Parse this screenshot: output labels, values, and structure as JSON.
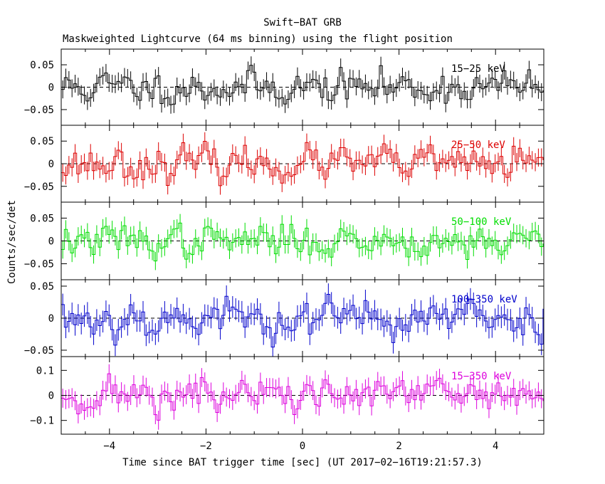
{
  "figure": {
    "title": "Swift−BAT GRB",
    "subtitle": "Maskweighted Lightcurve (64 ms binning) using the flight position",
    "ylabel": "Counts/sec/det",
    "xlabel": "Time since BAT trigger time [sec] (UT 2017−02−16T19:21:57.3)"
  },
  "chart_data": [
    {
      "type": "line",
      "legend": "15−25 keV",
      "color": "#000000",
      "xlim": [
        -5,
        5
      ],
      "ylim": [
        -0.085,
        0.085
      ],
      "x_ticks": [
        -4,
        -2,
        0,
        2,
        4
      ],
      "y_ticks": [
        0.05,
        0,
        -0.05
      ],
      "y_tick_labels": [
        "0.05",
        "0",
        "−0.05"
      ],
      "zero_line": true,
      "bin_width": 0.064,
      "noise_sigma": 0.018,
      "error": 0.02,
      "seed": 11
    },
    {
      "type": "line",
      "legend": "25−50 keV",
      "color": "#dd0000",
      "xlim": [
        -5,
        5
      ],
      "ylim": [
        -0.085,
        0.085
      ],
      "x_ticks": [
        -4,
        -2,
        0,
        2,
        4
      ],
      "y_ticks": [
        0.05,
        0,
        -0.05
      ],
      "y_tick_labels": [
        "0.05",
        "0",
        "−0.05"
      ],
      "zero_line": true,
      "bin_width": 0.064,
      "noise_sigma": 0.018,
      "error": 0.02,
      "seed": 23
    },
    {
      "type": "line",
      "legend": "50−100 keV",
      "color": "#00dd00",
      "xlim": [
        -5,
        5
      ],
      "ylim": [
        -0.085,
        0.085
      ],
      "x_ticks": [
        -4,
        -2,
        0,
        2,
        4
      ],
      "y_ticks": [
        0.05,
        0,
        -0.05
      ],
      "y_tick_labels": [
        "0.05",
        "0",
        "−0.05"
      ],
      "zero_line": true,
      "bin_width": 0.064,
      "noise_sigma": 0.017,
      "error": 0.02,
      "seed": 37
    },
    {
      "type": "line",
      "legend": "100−350 keV",
      "color": "#0000cc",
      "xlim": [
        -5,
        5
      ],
      "ylim": [
        -0.06,
        0.06
      ],
      "x_ticks": [
        -4,
        -2,
        0,
        2,
        4
      ],
      "y_ticks": [
        0.05,
        0,
        -0.05
      ],
      "y_tick_labels": [
        "0.05",
        "0",
        "−0.05"
      ],
      "zero_line": true,
      "bin_width": 0.064,
      "noise_sigma": 0.015,
      "error": 0.017,
      "seed": 53
    },
    {
      "type": "line",
      "legend": "15−350 keV",
      "color": "#dd00dd",
      "xlim": [
        -5,
        5
      ],
      "ylim": [
        -0.155,
        0.155
      ],
      "x_ticks": [
        -4,
        -2,
        0,
        2,
        4
      ],
      "y_ticks": [
        0.1,
        0,
        -0.1
      ],
      "y_tick_labels": [
        "0.1",
        "0",
        "−0.1"
      ],
      "zero_line": true,
      "bin_width": 0.064,
      "noise_sigma": 0.035,
      "error": 0.038,
      "seed": 71
    }
  ]
}
